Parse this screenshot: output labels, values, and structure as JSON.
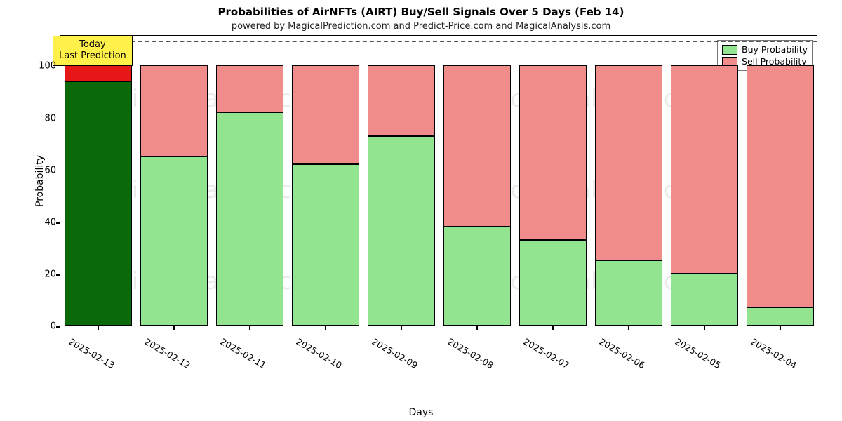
{
  "chart": {
    "type": "stacked-bar",
    "title": "Probabilities of AirNFTs (AIRT) Buy/Sell Signals Over 5 Days (Feb 14)",
    "subtitle": "powered by MagicalPrediction.com and Predict-Price.com and MagicalAnalysis.com",
    "xlabel": "Days",
    "ylabel": "Probability",
    "title_fontsize": 15,
    "subtitle_fontsize": 13,
    "label_fontsize": 14,
    "tick_fontsize": 13,
    "background_color": "#ffffff",
    "border_color": "#000000",
    "ylim": [
      0,
      112
    ],
    "yticks": [
      0,
      20,
      40,
      60,
      80,
      100
    ],
    "bar_width": 0.88,
    "reference_line": {
      "y": 110,
      "color": "#555555",
      "dash": "dashed"
    },
    "categories": [
      "2025-02-13",
      "2025-02-12",
      "2025-02-11",
      "2025-02-10",
      "2025-02-09",
      "2025-02-08",
      "2025-02-07",
      "2025-02-06",
      "2025-02-05",
      "2025-02-04"
    ],
    "buy_values": [
      94,
      65,
      82,
      62,
      73,
      38,
      33,
      25,
      20,
      7
    ],
    "sell_values": [
      6,
      35,
      18,
      38,
      27,
      62,
      67,
      75,
      80,
      93
    ],
    "colors": {
      "buy_normal": "#92e58e",
      "sell_normal": "#f08d8b",
      "buy_today": "#0a6a0a",
      "sell_today": "#e51717",
      "bar_border": "#000000"
    },
    "today_index": 0,
    "annotation": {
      "text_line1": "Today",
      "text_line2": "Last Prediction",
      "bg": "#fff04a",
      "border": "#000000"
    },
    "legend": {
      "buy_label": "Buy Probability",
      "sell_label": "Sell Probability"
    },
    "watermark_text": "MagicalAnalysis.com"
  }
}
